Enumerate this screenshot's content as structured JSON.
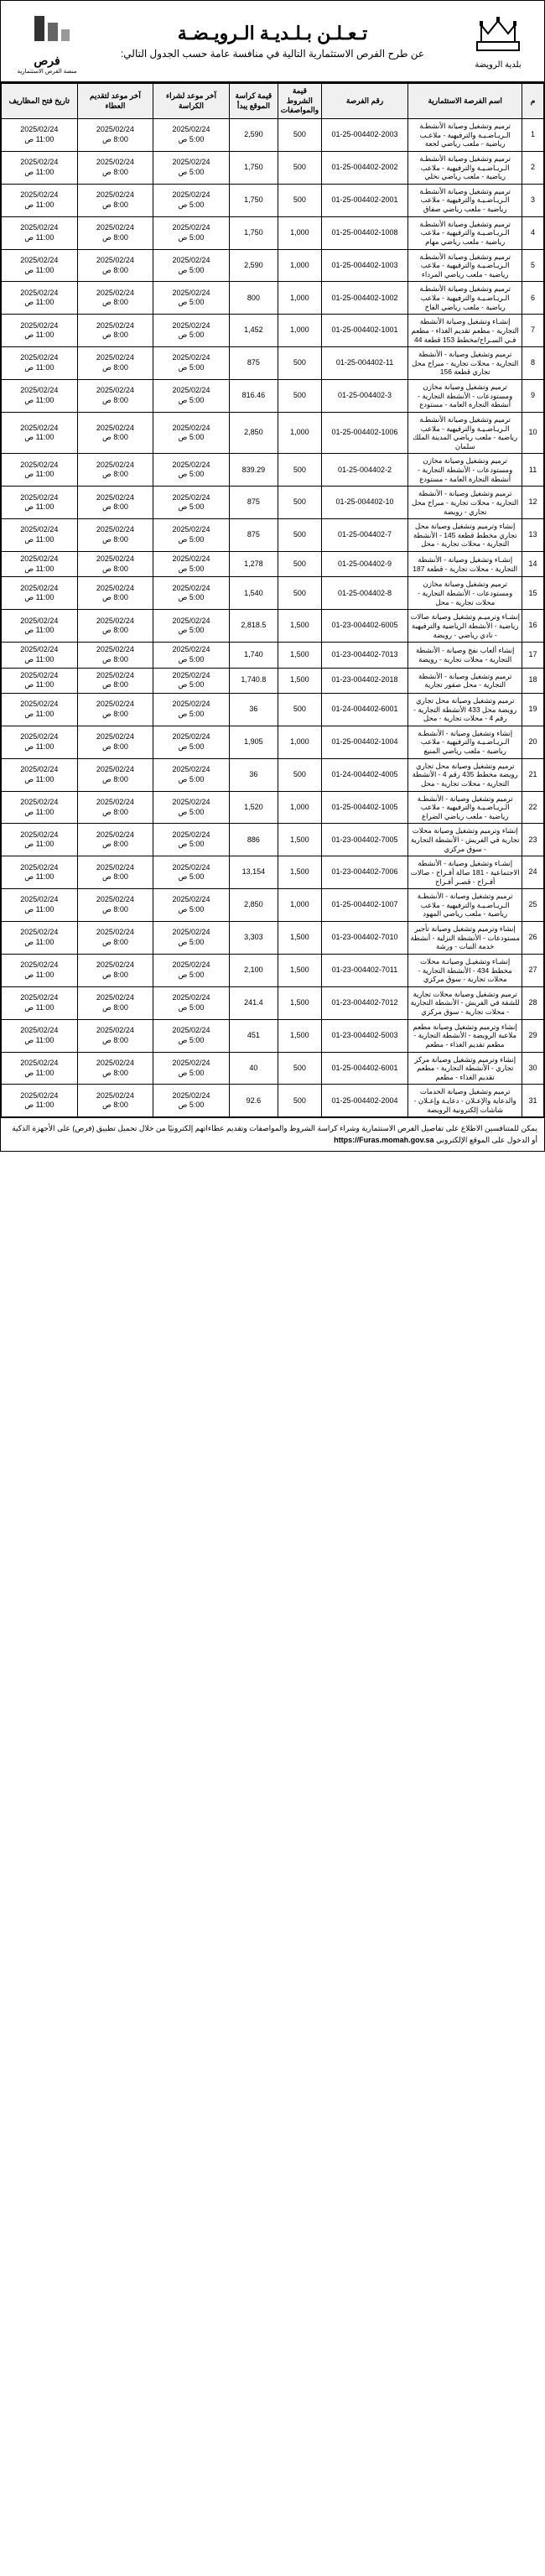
{
  "header": {
    "main_title": "تـعـلـن بـلـديـة الـرويـضـة",
    "sub_title": "عن طرح الفرص الاستثمارية التالية في منافسة عامة حسب الجدول التالي:",
    "right_caption": "بلدية الرويضة",
    "left_label": "فرص",
    "left_sub": "منصة الفرص الاستثمارية"
  },
  "columns": {
    "m": "م",
    "name": "اسم الفرصة الاستثمارية",
    "num": "رقم الفرصة",
    "doc": "قيمة\nالشروط\nوالمواصفات",
    "kar": "قيمة كراسة\nالموقع يبدأ",
    "sale": "آخر موعد\nلشراء الكراسة",
    "bid": "آخر موعد\nلتقديم العطاء",
    "open": "تاريخ فتح\nالمظاريف"
  },
  "dates": {
    "sale": "2025/02/24\n5:00 ص",
    "bid": "2025/02/24\n8:00 ص",
    "open": "2025/02/24\n11:00 ص"
  },
  "rows": [
    {
      "m": "1",
      "name": "ترميم وتشغيل وصيانة الأنشطـة الـريـاضـيـة والترفيهية - ملاعـب رياضية - ملعب رياضي لجعة",
      "num": "01-25-004402-2003",
      "doc": "500",
      "kar": "2,590"
    },
    {
      "m": "2",
      "name": "ترميم وتشغيل وصيانة الأنشطـة الـريـاضـيـة والترفيهية - ملاعب رياضية - ملعب رياضي نخلي",
      "num": "01-25-004402-2002",
      "doc": "500",
      "kar": "1,750"
    },
    {
      "m": "3",
      "name": "ترميم وتشغيل وصيانة الأنشطـة الـريـاضـيـة والترفيهية - ملاعب رياضية - ملعب رياضي صفاق",
      "num": "01-25-004402-2001",
      "doc": "500",
      "kar": "1,750"
    },
    {
      "m": "4",
      "name": "ترميم وتشغيل وصيانة الأنشطـة الـريـاضـيـة والترفيهية - ملاعب رياضية - ملعب رياضي مهام",
      "num": "01-25-004402-1008",
      "doc": "1,000",
      "kar": "1,750"
    },
    {
      "m": "5",
      "name": "ترميم وتشغيل وصيانة الأنشطـة الـريـاضـيـة والترفيهية - ملاعب رياضية - ملعب رياضي المرداء",
      "num": "01-25-004402-1003",
      "doc": "1,000",
      "kar": "2,590"
    },
    {
      "m": "6",
      "name": "ترميم وتشغيل وصيانة الأنشطـة الـريـاضـيـة والترفيهية - ملاعب رياضية - ملعب رياضي الفاخ",
      "num": "01-25-004402-1002",
      "doc": "1,000",
      "kar": "800"
    },
    {
      "m": "7",
      "name": "إنشـاء وتشغيل وصيانة الأنشطة التجارية - مطعم تقديم الغذاء - مطعم فـي السـراح/مخطط 153 قطعة 44",
      "num": "01-25-004402-1001",
      "doc": "1,000",
      "kar": "1,452"
    },
    {
      "m": "8",
      "name": "ترميم وتشغيل وصيانة - الأنشطة التجارية - محلات تجارية - مبراح محل تجاري قطعة 156",
      "num": "01-25-004402-11",
      "doc": "500",
      "kar": "875"
    },
    {
      "m": "9",
      "name": "ترميم وتشغيل وصيانة مخازن ومستودعات - الأنشطة التجارية - أنشطة التجارة العامة - مستودع",
      "num": "01-25-004402-3",
      "doc": "500",
      "kar": "816.46"
    },
    {
      "m": "10",
      "name": "ترميم وتشغيل وصيانة الأنشطـة الـريـاضـيـة والترفيهية - ملاعب رياضية - ملعب رياضي المدينة الملك سلمان",
      "num": "01-25-004402-1006",
      "doc": "1,000",
      "kar": "2,850"
    },
    {
      "m": "11",
      "name": "ترميم وتشغيل وصيانة مخازن ومستودعات - الأنشطة التجارية - أنشطة التجارة العامة - مستودع",
      "num": "01-25-004402-2",
      "doc": "500",
      "kar": "839.29"
    },
    {
      "m": "12",
      "name": "ترميم وتشغيل وصيانة - الأنشطة التجارية - محلات تجارية - مبراح محل تجاري - رويضة",
      "num": "01-25-004402-10",
      "doc": "500",
      "kar": "875"
    },
    {
      "m": "13",
      "name": "إنشاء وترميم وتشغيل وصيانة محل تجاري مخطط قطعة 145 - الأنشطة التجارية - محلات تجارية - محل",
      "num": "01-25-004402-7",
      "doc": "500",
      "kar": "875"
    },
    {
      "m": "14",
      "name": "إنشـاء وتشغيل وصيانة - الأنشطة التجارية - محلات تجارية - قطعة 187",
      "num": "01-25-004402-9",
      "doc": "500",
      "kar": "1,278"
    },
    {
      "m": "15",
      "name": "ترميم وتشغيل وصيانة مخازن ومستودعات - الأنشطة التجارية - محلات تجارية - محل",
      "num": "01-25-004402-8",
      "doc": "500",
      "kar": "1,540"
    },
    {
      "m": "16",
      "name": "إنشـاء وترميـم وتشغيل وصيانة صالات رياضية - الأنشطة الرياضية والترفيهية - نادي رياضي - رويضة",
      "num": "01-23-004402-6005",
      "doc": "1,500",
      "kar": "2,818.5"
    },
    {
      "m": "17",
      "name": "إنشاء ألعاب نفخ وصيانة - الأنشطة التجارية - محلات تجارية - رويضة",
      "num": "01-23-004402-7013",
      "doc": "1,500",
      "kar": "1,740"
    },
    {
      "m": "18",
      "name": "ترميم وتشغيل وصيانة - الأنشطة التجارية - محل صقور تجارية",
      "num": "01-23-004402-2018",
      "doc": "1,500",
      "kar": "1,740.8"
    },
    {
      "m": "19",
      "name": "ترميم وتشغيل وصيانة محل تجاري رويضة محل 433 الأنشطة التجارية - رقم 4 - محلات تجارية - محل",
      "num": "01-24-004402-6001",
      "doc": "500",
      "kar": "36"
    },
    {
      "m": "20",
      "name": "إنشاء وتشغيل وصيانة - الأنشطـة الـريـاضـيـة والترفيهية - ملاعب رياضية - ملعب رياضي المنيع",
      "num": "01-25-004402-1004",
      "doc": "1,000",
      "kar": "1,905"
    },
    {
      "m": "21",
      "name": "ترميم وتشغيل وصيانة محل تجاري رويضة مخطط 435 رقم 4 - الأنشطة التجارية - محلات تجارية - محل",
      "num": "01-24-004402-4005",
      "doc": "500",
      "kar": "36"
    },
    {
      "m": "22",
      "name": "ترميم وتشغيل وصيانة - الأنشطـة الـريـاضـيـة والترفيهية - ملاعب رياضية - ملعب رياضي الضراع",
      "num": "01-25-004402-1005",
      "doc": "1,000",
      "kar": "1,520"
    },
    {
      "m": "23",
      "name": "إنشاء وترميم وتشغيل وصيانة محلات تجارية في الفريش - الأنشطة التجارية - سوق مركزي",
      "num": "01-23-004402-7005",
      "doc": "1,500",
      "kar": "886"
    },
    {
      "m": "24",
      "name": "إنشـاء وتشغيل وصيانة - الأنشطة الاجتماعية - 181 صالة أفـراح - صالات أفـراح - قصـر أفـراح",
      "num": "01-23-004402-7006",
      "doc": "1,500",
      "kar": "13,154"
    },
    {
      "m": "25",
      "name": "ترميم وتشغيل وصيانة - الأنشطـة الـريـاضـيـة والترفيهية - ملاعب رياضية - ملعب رياضي المهود",
      "num": "01-25-004402-1007",
      "doc": "1,000",
      "kar": "2,850"
    },
    {
      "m": "26",
      "name": "إنشاء وترميم وتشغيل وصيانة تأجير مستودعات - الأنشطة النزلية - أنشطة خدمة النبات - ورشة",
      "num": "01-23-004402-7010",
      "doc": "1,500",
      "kar": "3,303"
    },
    {
      "m": "27",
      "name": "إنشـاء وتشغيـل وصيانـة محلات مخطط 434 - الأنشطة التجارية - محلات تجارية - سوق مركزي",
      "num": "01-23-004402-7011",
      "doc": "1,500",
      "kar": "2,100"
    },
    {
      "m": "28",
      "name": "ترميم وتشغيل وصيانة محلات تجارية للشقة في الفريش - الأنشطة التجارية - محلات تجارية - سوق مركزي",
      "num": "01-23-004402-7012",
      "doc": "1,500",
      "kar": "241.4"
    },
    {
      "m": "29",
      "name": "إنشاء وترميم وتشغيل وصيانة مطعم ملاعبة الرويضة - الأنشطة التجارية - مطعم تقديم الغذاء - مطعم",
      "num": "01-23-004402-5003",
      "doc": "1,500",
      "kar": "451"
    },
    {
      "m": "30",
      "name": "إنشاء وترميم وتشغيل وصيانة مركز تجاري - الأنشطة التجارية - مطعم تقديم الغذاء - مطعم",
      "num": "01-25-004402-6001",
      "doc": "500",
      "kar": "40"
    },
    {
      "m": "31",
      "name": "ترميم وتشغيل وصيانة الخدمات والدعاية والإعـلان - دعايـة وإعـلان - شاشات إلكترونية الرويضة",
      "num": "01-25-004402-2004",
      "doc": "500",
      "kar": "92.6"
    }
  ],
  "footer": {
    "line1": "يمكن للمتنافسين الاطلاع على تفاصيل الفرص الاستثمارية وشراء كراسة الشروط والمواصفات وتقديم عطاءاتهم إلكترونيًا من خلال",
    "line2": "تحميل تطبيق (فرص) على الأجهزة الذكية أو الدخول على الموقع الإلكتروني",
    "url": "https://Furas.momah.gov.sa"
  }
}
